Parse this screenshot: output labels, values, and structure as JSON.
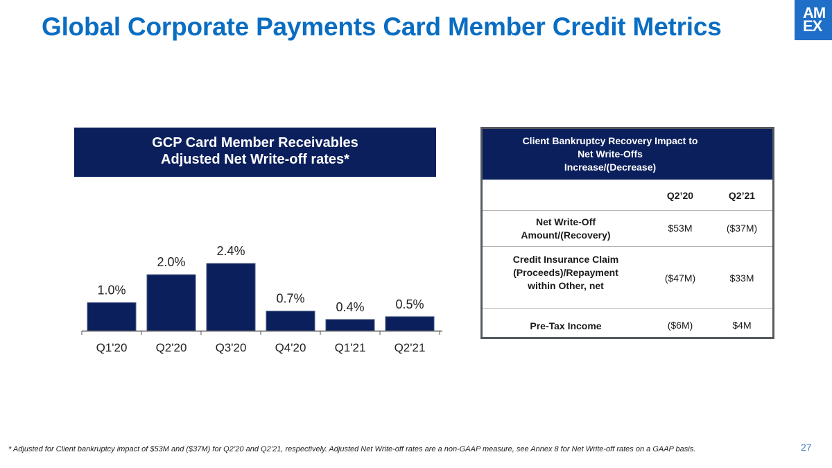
{
  "slide": {
    "title": "Global Corporate Payments Card Member Credit Metrics",
    "logo_lines": [
      "AM",
      "EX"
    ],
    "page_number": "27",
    "footnote": "* Adjusted for Client bankruptcy impact of $53M and ($37M) for Q2’20 and Q2’21, respectively. Adjusted Net Write-off rates are a non-GAAP measure, see Annex 8 for Net Write-off rates on a GAAP basis."
  },
  "chart_header": {
    "line1": "GCP Card Member Receivables",
    "line2": "Adjusted Net Write-off rates*"
  },
  "chart_data": {
    "type": "bar",
    "categories": [
      "Q1'20",
      "Q2'20",
      "Q3'20",
      "Q4'20",
      "Q1'21",
      "Q2'21"
    ],
    "values": [
      1.0,
      2.0,
      2.4,
      0.7,
      0.4,
      0.5
    ],
    "data_labels": [
      "1.0%",
      "2.0%",
      "2.4%",
      "0.7%",
      "0.4%",
      "0.5%"
    ],
    "title": "",
    "xlabel": "",
    "ylabel": "",
    "ylim": [
      0,
      2.4
    ],
    "grid": false,
    "legend": "none",
    "bar_color": "#0b1f5c"
  },
  "table": {
    "header_lines": [
      "Client Bankruptcy Recovery Impact to",
      "Net Write-Offs",
      "Increase/(Decrease)"
    ],
    "columns": [
      "Q2’20",
      "Q2’21"
    ],
    "rows": [
      {
        "label_lines": [
          "Net Write-Off",
          "Amount/(Recovery)"
        ],
        "values": [
          "$53M",
          "($37M)"
        ]
      },
      {
        "label_lines": [
          "Credit Insurance Claim",
          "(Proceeds)/Repayment",
          "within Other, net"
        ],
        "values": [
          "($47M)",
          "$33M"
        ]
      },
      {
        "label_lines": [
          "Pre-Tax Income"
        ],
        "values": [
          "($6M)",
          "$4M"
        ]
      }
    ]
  },
  "colors": {
    "title": "#0a6dc2",
    "navy": "#0b1f5c",
    "logo_blue": "#1f6fc8"
  }
}
